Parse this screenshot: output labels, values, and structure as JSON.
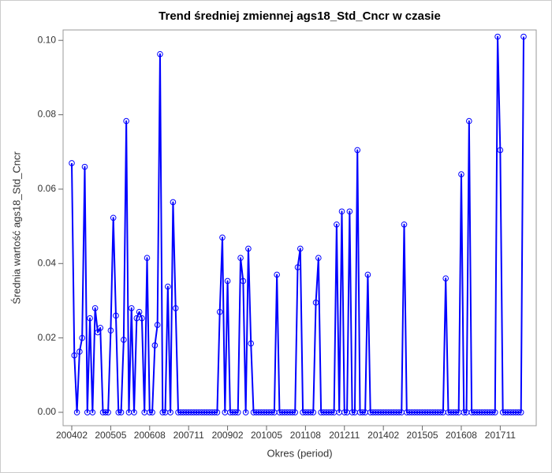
{
  "chart_data": {
    "type": "line",
    "title": "Trend średniej zmiennej ags18_Std_Cncr w czasie",
    "x_label": "Okres (period)",
    "y_label": "Średnia wartość ags18_Std_Cncr",
    "categories": [
      "200402",
      null,
      null,
      null,
      null,
      null,
      null,
      null,
      null,
      null,
      null,
      null,
      null,
      null,
      null,
      "200505",
      null,
      null,
      null,
      null,
      null,
      null,
      null,
      null,
      null,
      null,
      null,
      null,
      null,
      null,
      "200608",
      null,
      null,
      null,
      null,
      null,
      null,
      null,
      null,
      null,
      null,
      null,
      null,
      null,
      null,
      "200711",
      null,
      null,
      null,
      null,
      null,
      null,
      null,
      null,
      null,
      null,
      null,
      null,
      null,
      null,
      "200902",
      null,
      null,
      null,
      null,
      null,
      null,
      null,
      null,
      null,
      null,
      null,
      null,
      null,
      null,
      "201005",
      null,
      null,
      null,
      null,
      null,
      null,
      null,
      null,
      null,
      null,
      null,
      null,
      null,
      null,
      "201108",
      null,
      null,
      null,
      null,
      null,
      null,
      null,
      null,
      null,
      null,
      null,
      null,
      null,
      null,
      "201211",
      null,
      null,
      null,
      null,
      null,
      null,
      null,
      null,
      null,
      null,
      null,
      null,
      null,
      null,
      "201402",
      null,
      null,
      null,
      null,
      null,
      null,
      null,
      null,
      null,
      null,
      null,
      null,
      null,
      null,
      "201505",
      null,
      null,
      null,
      null,
      null,
      null,
      null,
      null,
      null,
      null,
      null,
      null,
      null,
      null,
      "201608",
      null,
      null,
      null,
      null,
      null,
      null,
      null,
      null,
      null,
      null,
      null,
      null,
      null,
      null,
      "201711",
      null,
      null,
      null,
      null,
      null,
      null,
      null,
      null,
      null
    ],
    "series": [
      {
        "color": "#0000ff",
        "values": [
          0.067,
          0.0153,
          0,
          0.0163,
          0.02,
          0.066,
          0,
          0.0253,
          0,
          0.028,
          0.0215,
          0.0227,
          0,
          0,
          0,
          0.022,
          0.0523,
          0.026,
          0,
          0,
          0.0195,
          0.0783,
          0,
          0.028,
          0,
          0.0253,
          0.027,
          0.0253,
          0,
          0.0415,
          0,
          0,
          0.018,
          0.0235,
          0.0963,
          0,
          0,
          0.0338,
          0,
          0.0565,
          0.028,
          0,
          0,
          0,
          0,
          0,
          0,
          0,
          0,
          0,
          0,
          0,
          0,
          0,
          0,
          0,
          0,
          0.027,
          0.047,
          0,
          0.0353,
          0,
          0,
          0,
          0,
          0.0415,
          0.0353,
          0,
          0.044,
          0.0185,
          0,
          0,
          0,
          0,
          0,
          0,
          0,
          0,
          0,
          0.037,
          0,
          0,
          0,
          0,
          0,
          0,
          0,
          0.039,
          0.044,
          0,
          0,
          0,
          0,
          0,
          0.0295,
          0.0415,
          0,
          0,
          0,
          0,
          0,
          0,
          0.0505,
          0,
          0.054,
          0,
          0,
          0.054,
          0,
          0,
          0.0705,
          0,
          0,
          0,
          0.037,
          0,
          0,
          0,
          0,
          0,
          0,
          0,
          0,
          0,
          0,
          0,
          0,
          0,
          0.0505,
          0,
          0,
          0,
          0,
          0,
          0,
          0,
          0,
          0,
          0,
          0,
          0,
          0,
          0,
          0,
          0.036,
          0,
          0,
          0,
          0,
          0,
          0.064,
          0,
          0,
          0.0783,
          0,
          0,
          0,
          0,
          0,
          0,
          0,
          0,
          0,
          0,
          0.101,
          0.0705,
          0,
          0,
          0,
          0,
          0,
          0,
          0,
          0,
          0.101
        ]
      }
    ],
    "ylim": [
      -0.0036,
      0.1028
    ],
    "yticks": [
      {
        "value": 0,
        "label": "0.00"
      },
      0.02,
      0.04,
      0.06,
      0.08,
      {
        "value": 0.1,
        "label": "0.10"
      }
    ]
  }
}
